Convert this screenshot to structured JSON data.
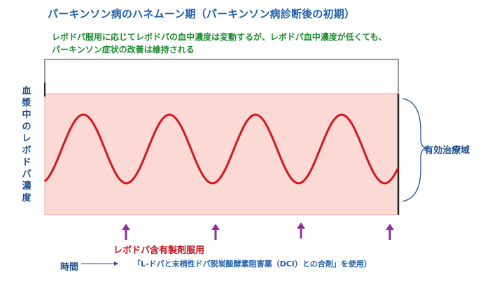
{
  "title": "パーキンソン病のハネムーン期（パーキンソン病診断後の初期）",
  "notes": [
    "レボドパ服用に応じてレボドパの血中濃度は変動するが、レボドパ血中濃度が低くても、",
    "パーキンソン症状の改善は維持される"
  ],
  "y_axis_label": "血漿中のレボドパ濃度",
  "therapeutic_range_label": "有効治療域",
  "medication_label": "レボドパ含有製剤服用",
  "time_label": "時間",
  "dci_note": "「L-ドパと末梢性ドパ脱炭酸酵素阻害薬（DCI）との合剤」を使用）",
  "colors": {
    "title": "#1f5fa8",
    "note": "#1e8a2e",
    "curve": "#d4161e",
    "therapeutic_band": "#fbd9d4",
    "arrow": "#8e2f9c",
    "medication_label": "#c0161e"
  },
  "doses": 4,
  "peaks": 4
}
